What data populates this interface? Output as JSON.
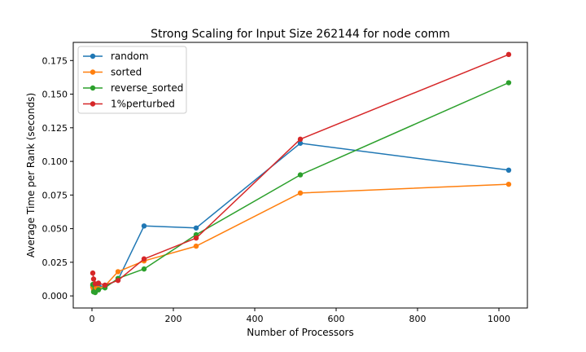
{
  "chart_data": {
    "type": "line",
    "title": "Strong Scaling for Input Size 262144 for node comm",
    "xlabel": "Number of Processors",
    "ylabel": "Average Time per Rank (seconds)",
    "xlim": [
      -46,
      1070
    ],
    "ylim": [
      -0.009,
      0.1885
    ],
    "xticks": [
      0,
      200,
      400,
      600,
      800,
      1000
    ],
    "yticks": [
      0.0,
      0.025,
      0.05,
      0.075,
      0.1,
      0.125,
      0.15,
      0.175
    ],
    "xtick_labels": [
      "0",
      "200",
      "400",
      "600",
      "800",
      "1000"
    ],
    "ytick_labels": [
      "0.000",
      "0.025",
      "0.050",
      "0.075",
      "0.100",
      "0.125",
      "0.150",
      "0.175"
    ],
    "legend_position": "top-left",
    "grid": false,
    "x": [
      2,
      4,
      8,
      16,
      32,
      64,
      128,
      256,
      512,
      1024
    ],
    "series": [
      {
        "name": "random",
        "color": "#1f77b4",
        "values": [
          0.0075,
          0.005,
          0.0055,
          0.0075,
          0.007,
          0.012,
          0.052,
          0.0505,
          0.1135,
          0.0935
        ]
      },
      {
        "name": "sorted",
        "color": "#ff7f0e",
        "values": [
          0.0065,
          0.0045,
          0.006,
          0.0055,
          0.0075,
          0.018,
          0.026,
          0.037,
          0.0765,
          0.083
        ]
      },
      {
        "name": "reverse_sorted",
        "color": "#2ca02c",
        "values": [
          0.0085,
          0.003,
          0.0025,
          0.0045,
          0.006,
          0.013,
          0.02,
          0.0455,
          0.09,
          0.1585
        ]
      },
      {
        "name": "1%perturbed",
        "color": "#d62728",
        "values": [
          0.017,
          0.0125,
          0.009,
          0.0095,
          0.008,
          0.0115,
          0.0275,
          0.043,
          0.1165,
          0.1795
        ]
      }
    ]
  }
}
